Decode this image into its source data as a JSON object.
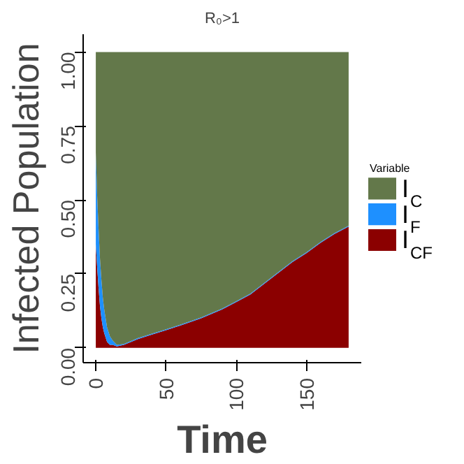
{
  "chart_data": {
    "type": "area",
    "stacked": true,
    "title": "R₀>1",
    "xlabel": "Time",
    "ylabel": "Infected Population",
    "legend_title": "Variable",
    "legend": "right",
    "grid": false,
    "x": [
      0,
      1,
      2,
      3,
      4,
      5,
      6,
      7,
      8,
      10,
      12,
      15,
      20,
      30,
      40,
      50,
      60,
      75,
      90,
      100,
      110,
      125,
      140,
      150,
      160,
      170,
      180
    ],
    "series": [
      {
        "name": "I$_{CF}$",
        "color": "#8b0000",
        "values": [
          0.35,
          0.27,
          0.2,
          0.14,
          0.1,
          0.07,
          0.05,
          0.035,
          0.02,
          0.01,
          0.01,
          0.005,
          0.01,
          0.03,
          0.045,
          0.06,
          0.075,
          0.1,
          0.13,
          0.155,
          0.18,
          0.235,
          0.29,
          0.32,
          0.355,
          0.385,
          0.41
        ]
      },
      {
        "name": "I$_{F}$",
        "color": "#1e90ff",
        "values": [
          0.31,
          0.24,
          0.2,
          0.16,
          0.13,
          0.1,
          0.08,
          0.065,
          0.05,
          0.03,
          0.015,
          0.005,
          0.003,
          0.003,
          0.003,
          0.003,
          0.003,
          0.003,
          0.003,
          0.003,
          0.003,
          0.003,
          0.003,
          0.003,
          0.003,
          0.003,
          0.003
        ]
      },
      {
        "name": "I$_{C}$",
        "color": "#63784a",
        "values": [
          0.34,
          0.49,
          0.6,
          0.7,
          0.77,
          0.83,
          0.87,
          0.9,
          0.93,
          0.96,
          0.975,
          0.99,
          0.987,
          0.967,
          0.952,
          0.937,
          0.922,
          0.897,
          0.867,
          0.842,
          0.817,
          0.762,
          0.707,
          0.677,
          0.642,
          0.612,
          0.587
        ]
      }
    ],
    "xlim": [
      -9,
      189
    ],
    "ylim": [
      -0.05,
      1.06
    ],
    "xticks": [
      0,
      50,
      100,
      150
    ],
    "yticks": [
      {
        "value": 0,
        "label": "0.00"
      },
      {
        "value": 0.25,
        "label": "0.25"
      },
      {
        "value": 0.5,
        "label": "0.50"
      },
      {
        "value": 0.75,
        "label": "0.75"
      },
      {
        "value": 1,
        "label": "1.00"
      }
    ]
  }
}
